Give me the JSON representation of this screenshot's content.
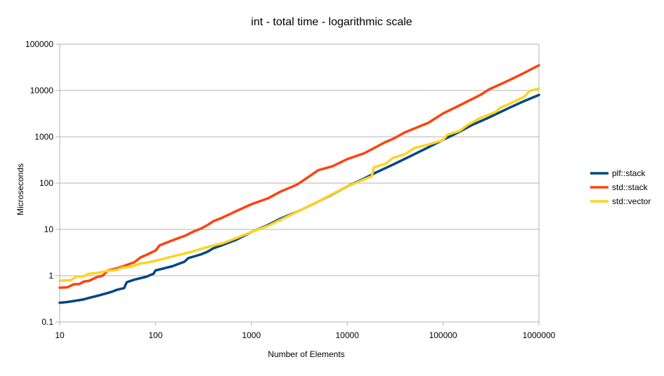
{
  "chart_data": {
    "type": "line",
    "title": "int - total time - logarithmic scale",
    "xlabel": "Number of Elements",
    "ylabel": "Microseconds",
    "x_scale": "log",
    "y_scale": "log",
    "xlim": [
      10,
      1000000
    ],
    "ylim": [
      0.1,
      100000
    ],
    "x_ticks": [
      "10",
      "100",
      "1000",
      "10000",
      "100000",
      "1000000"
    ],
    "y_ticks": [
      "0.1",
      "1",
      "10",
      "100",
      "1000",
      "10000",
      "100000"
    ],
    "grid": true,
    "legend_position": "right",
    "series": [
      {
        "name": "plf::stack",
        "color": "#004586",
        "points": [
          [
            10,
            0.26
          ],
          [
            12,
            0.27
          ],
          [
            15,
            0.29
          ],
          [
            18,
            0.31
          ],
          [
            20,
            0.33
          ],
          [
            25,
            0.37
          ],
          [
            30,
            0.41
          ],
          [
            35,
            0.45
          ],
          [
            40,
            0.5
          ],
          [
            47,
            0.54
          ],
          [
            50,
            0.72
          ],
          [
            60,
            0.82
          ],
          [
            80,
            0.95
          ],
          [
            95,
            1.1
          ],
          [
            100,
            1.3
          ],
          [
            150,
            1.6
          ],
          [
            200,
            2.0
          ],
          [
            220,
            2.4
          ],
          [
            300,
            2.9
          ],
          [
            350,
            3.3
          ],
          [
            400,
            3.9
          ],
          [
            500,
            4.6
          ],
          [
            700,
            6.0
          ],
          [
            1000,
            8.8
          ],
          [
            1500,
            12.5
          ],
          [
            2000,
            17
          ],
          [
            3000,
            24
          ],
          [
            5000,
            40
          ],
          [
            7000,
            57
          ],
          [
            10000,
            85
          ],
          [
            15000,
            125
          ],
          [
            20000,
            170
          ],
          [
            30000,
            250
          ],
          [
            50000,
            420
          ],
          [
            70000,
            590
          ],
          [
            100000,
            860
          ],
          [
            150000,
            1300
          ],
          [
            200000,
            1800
          ],
          [
            300000,
            2600
          ],
          [
            500000,
            4300
          ],
          [
            700000,
            5900
          ],
          [
            1000000,
            8000
          ]
        ]
      },
      {
        "name": "std::stack",
        "color": "#ff420e",
        "points": [
          [
            10,
            0.55
          ],
          [
            12,
            0.56
          ],
          [
            14,
            0.65
          ],
          [
            16,
            0.66
          ],
          [
            18,
            0.75
          ],
          [
            20,
            0.77
          ],
          [
            25,
            0.95
          ],
          [
            28,
            1.0
          ],
          [
            32,
            1.3
          ],
          [
            40,
            1.45
          ],
          [
            50,
            1.7
          ],
          [
            60,
            1.95
          ],
          [
            70,
            2.5
          ],
          [
            80,
            2.8
          ],
          [
            100,
            3.5
          ],
          [
            110,
            4.5
          ],
          [
            150,
            5.8
          ],
          [
            200,
            7.2
          ],
          [
            250,
            9.0
          ],
          [
            300,
            10.5
          ],
          [
            350,
            12.5
          ],
          [
            400,
            15
          ],
          [
            500,
            18
          ],
          [
            700,
            25
          ],
          [
            1000,
            35
          ],
          [
            1500,
            47
          ],
          [
            2000,
            65
          ],
          [
            3000,
            93
          ],
          [
            5000,
            190
          ],
          [
            7000,
            230
          ],
          [
            10000,
            330
          ],
          [
            15000,
            440
          ],
          [
            20000,
            600
          ],
          [
            25000,
            770
          ],
          [
            30000,
            900
          ],
          [
            40000,
            1250
          ],
          [
            70000,
            2000
          ],
          [
            100000,
            3200
          ],
          [
            150000,
            4800
          ],
          [
            200000,
            6500
          ],
          [
            250000,
            8200
          ],
          [
            300000,
            10500
          ],
          [
            500000,
            17000
          ],
          [
            700000,
            24000
          ],
          [
            1000000,
            35000
          ]
        ]
      },
      {
        "name": "std::vector",
        "color": "#ffd320",
        "points": [
          [
            10,
            0.78
          ],
          [
            13,
            0.8
          ],
          [
            15,
            0.95
          ],
          [
            18,
            0.98
          ],
          [
            20,
            1.1
          ],
          [
            25,
            1.15
          ],
          [
            30,
            1.25
          ],
          [
            35,
            1.3
          ],
          [
            40,
            1.35
          ],
          [
            45,
            1.5
          ],
          [
            55,
            1.55
          ],
          [
            70,
            1.85
          ],
          [
            80,
            1.9
          ],
          [
            100,
            2.1
          ],
          [
            110,
            2.2
          ],
          [
            150,
            2.6
          ],
          [
            200,
            3.0
          ],
          [
            250,
            3.4
          ],
          [
            300,
            3.8
          ],
          [
            400,
            4.5
          ],
          [
            500,
            5.0
          ],
          [
            700,
            6.5
          ],
          [
            1000,
            8.8
          ],
          [
            1500,
            12
          ],
          [
            2000,
            16
          ],
          [
            3000,
            24
          ],
          [
            5000,
            40
          ],
          [
            7000,
            58
          ],
          [
            10000,
            85
          ],
          [
            15000,
            120
          ],
          [
            18000,
            140
          ],
          [
            19000,
            220
          ],
          [
            25000,
            260
          ],
          [
            30000,
            350
          ],
          [
            40000,
            420
          ],
          [
            50000,
            570
          ],
          [
            70000,
            680
          ],
          [
            100000,
            850
          ],
          [
            110000,
            1100
          ],
          [
            150000,
            1350
          ],
          [
            180000,
            1800
          ],
          [
            250000,
            2600
          ],
          [
            350000,
            3400
          ],
          [
            400000,
            4300
          ],
          [
            500000,
            5200
          ],
          [
            700000,
            7300
          ],
          [
            800000,
            9800
          ],
          [
            1000000,
            11000
          ]
        ]
      }
    ]
  }
}
